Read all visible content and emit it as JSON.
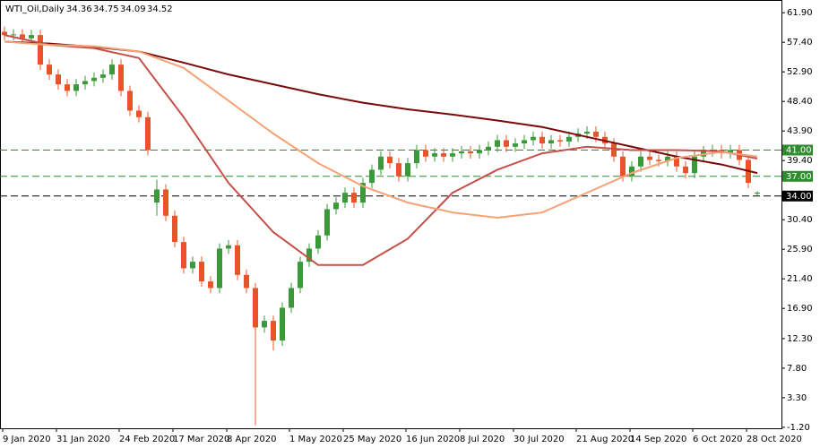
{
  "chart_data": {
    "type": "candlestick",
    "title": "WTI_Oil,Daily",
    "categories": [
      "9 Jan 2020",
      null,
      null,
      null,
      null,
      null,
      "31 Jan 2020",
      null,
      null,
      null,
      null,
      null,
      null,
      "24 Feb 2020",
      null,
      null,
      null,
      null,
      null,
      "17 Mar 2020",
      null,
      null,
      null,
      null,
      null,
      "8 Apr 2020",
      null,
      null,
      null,
      null,
      null,
      null,
      "1 May 2020",
      null,
      null,
      null,
      null,
      null,
      "25 May 2020",
      null,
      null,
      null,
      null,
      null,
      null,
      "16 Jun 2020",
      null,
      null,
      null,
      null,
      null,
      "8 Jul 2020",
      null,
      null,
      null,
      null,
      null,
      "30 Jul 2020",
      null,
      null,
      null,
      null,
      null,
      null,
      "21 Aug 2020",
      null,
      null,
      null,
      null,
      null,
      "14 Sep 2020",
      null,
      null,
      null,
      null,
      null,
      null,
      "6 Oct 2020",
      null,
      null,
      null,
      null,
      null,
      "28 Oct 2020",
      null
    ],
    "open": [
      59.0,
      58.5,
      58.6,
      58.0,
      58.5,
      54.0,
      52.5,
      51.0,
      50.0,
      51.0,
      51.5,
      52.0,
      52.5,
      54.0,
      50.0,
      47.0,
      46.0,
      33.0,
      35.0,
      31.0,
      27.0,
      23.0,
      24.0,
      21.0,
      20.0,
      26.0,
      26.5,
      22.0,
      20.0,
      14.0,
      15.0,
      12.0,
      17.0,
      20.0,
      24.0,
      26.0,
      28.0,
      32.0,
      33.0,
      34.5,
      33.0,
      36.0,
      38.0,
      40.0,
      39.0,
      37.0,
      39.0,
      41.0,
      40.0,
      40.5,
      40.0,
      40.5,
      40.8,
      40.5,
      41.0,
      41.5,
      42.5,
      41.5,
      42.0,
      42.5,
      43.0,
      42.0,
      42.5,
      42.3,
      43.0,
      43.5,
      43.8,
      43.0,
      42.0,
      40.0,
      37.0,
      38.5,
      40.0,
      39.5,
      39.3,
      40.0,
      38.5,
      37.5,
      40.0,
      40.8,
      41.0,
      40.5,
      41.0,
      39.5,
      34.36
    ],
    "high": [
      59.8,
      59.4,
      59.4,
      59.3,
      59.3,
      54.8,
      53.3,
      51.8,
      51.8,
      52.3,
      52.8,
      53.3,
      54.8,
      54.8,
      50.8,
      47.8,
      46.8,
      36.5,
      35.8,
      31.8,
      27.8,
      24.8,
      24.8,
      21.8,
      26.8,
      27.3,
      27.3,
      22.8,
      20.8,
      15.8,
      15.8,
      17.8,
      20.8,
      24.8,
      26.8,
      28.8,
      32.8,
      33.8,
      35.3,
      35.3,
      36.8,
      38.8,
      40.8,
      40.8,
      39.8,
      39.8,
      41.8,
      41.8,
      41.3,
      41.3,
      41.3,
      41.6,
      41.6,
      41.8,
      42.3,
      43.3,
      43.3,
      42.8,
      43.3,
      43.8,
      43.8,
      43.3,
      43.3,
      43.8,
      44.3,
      44.6,
      44.6,
      43.8,
      42.8,
      40.8,
      39.3,
      40.8,
      40.8,
      40.3,
      40.8,
      40.8,
      39.3,
      40.8,
      41.6,
      41.8,
      41.8,
      41.8,
      41.8,
      40.3,
      34.75
    ],
    "low": [
      57.7,
      57.7,
      57.2,
      57.2,
      53.2,
      51.7,
      50.2,
      49.2,
      49.2,
      50.2,
      50.7,
      51.2,
      51.7,
      49.2,
      46.2,
      45.2,
      40.2,
      31.0,
      30.2,
      26.2,
      22.2,
      22.2,
      20.2,
      19.2,
      19.2,
      25.2,
      21.2,
      19.2,
      -0.9,
      13.2,
      10.5,
      11.2,
      16.2,
      19.2,
      23.2,
      25.2,
      27.2,
      31.2,
      32.2,
      32.2,
      32.2,
      35.2,
      37.2,
      38.2,
      36.2,
      36.2,
      38.2,
      39.2,
      39.2,
      39.2,
      39.2,
      39.7,
      39.7,
      39.7,
      40.2,
      40.7,
      40.7,
      40.7,
      41.2,
      41.7,
      41.2,
      41.2,
      41.5,
      41.5,
      42.2,
      42.7,
      42.2,
      41.2,
      39.2,
      36.2,
      36.2,
      37.7,
      38.7,
      38.5,
      38.5,
      37.7,
      36.7,
      36.7,
      39.2,
      40.0,
      39.7,
      39.7,
      38.7,
      35.2,
      34.09
    ],
    "close": [
      58.5,
      58.6,
      58.0,
      58.5,
      54.0,
      52.5,
      51.0,
      50.0,
      51.0,
      51.5,
      52.0,
      52.5,
      54.0,
      50.0,
      47.0,
      46.0,
      41.0,
      35.0,
      31.0,
      27.0,
      23.0,
      24.0,
      21.0,
      20.0,
      26.0,
      26.5,
      22.0,
      20.0,
      14.0,
      15.0,
      12.0,
      17.0,
      20.0,
      24.0,
      26.0,
      28.0,
      32.0,
      33.0,
      34.5,
      33.0,
      36.0,
      38.0,
      40.0,
      39.0,
      37.0,
      39.0,
      41.0,
      40.0,
      40.5,
      40.0,
      40.5,
      40.8,
      40.5,
      41.0,
      41.5,
      42.5,
      41.5,
      42.0,
      42.5,
      43.0,
      42.0,
      42.5,
      42.3,
      43.0,
      43.5,
      43.8,
      43.0,
      42.0,
      40.0,
      37.0,
      38.5,
      40.0,
      39.5,
      39.3,
      40.0,
      38.5,
      37.5,
      40.0,
      40.8,
      41.0,
      40.5,
      41.0,
      39.5,
      36.0,
      34.52
    ],
    "up_color": "#3a9a3a",
    "down_color": "#e8542a",
    "overlays": [
      {
        "color": "#7a0a0a",
        "x": [
          0,
          5,
          10,
          15,
          20,
          25,
          30,
          35,
          40,
          45,
          50,
          55,
          60,
          65,
          70,
          75,
          80,
          84
        ],
        "values": [
          57.5,
          57.2,
          56.7,
          56.0,
          54.3,
          52.5,
          51.0,
          49.5,
          48.2,
          47.2,
          46.4,
          45.5,
          44.5,
          43.0,
          41.5,
          40.0,
          38.8,
          37.5
        ]
      },
      {
        "color": "#c4504a",
        "x": [
          0,
          5,
          10,
          15,
          20,
          25,
          30,
          35,
          40,
          45,
          50,
          55,
          60,
          65,
          70,
          75,
          80,
          84
        ],
        "values": [
          58.5,
          57.0,
          56.5,
          55.0,
          46.0,
          36.0,
          28.5,
          23.5,
          23.5,
          27.5,
          34.5,
          38.0,
          40.5,
          41.5,
          41.0,
          41.0,
          40.8,
          39.7
        ]
      },
      {
        "color": "#f4a276",
        "x": [
          0,
          5,
          10,
          15,
          20,
          25,
          30,
          35,
          40,
          45,
          50,
          55,
          60,
          65,
          70,
          75,
          80,
          84
        ],
        "values": [
          57.5,
          57.0,
          56.8,
          56.0,
          53.5,
          48.5,
          43.5,
          39.0,
          35.5,
          33.0,
          31.5,
          30.7,
          31.5,
          34.5,
          37.5,
          39.8,
          40.7,
          40.0
        ]
      }
    ],
    "levels": [
      {
        "value": 41,
        "label": "41.00",
        "color": "#2e8b2e"
      },
      {
        "value": 37,
        "label": "37.00",
        "color": "#2e8b2e"
      },
      {
        "value": 34,
        "label": "34.00",
        "color": "#000000"
      }
    ],
    "ylim": [
      -1.35,
      63.7
    ],
    "yticks": [
      {
        "value": 61.9,
        "label": "61.90"
      },
      {
        "value": 57.4,
        "label": "57.40"
      },
      {
        "value": 52.9,
        "label": "52.90"
      },
      {
        "value": 48.4,
        "label": "48.40"
      },
      {
        "value": 43.9,
        "label": "43.90"
      },
      {
        "value": 39.4,
        "label": "39.40"
      },
      {
        "value": 30.4,
        "label": "30.40"
      },
      {
        "value": 25.9,
        "label": "25.90"
      },
      {
        "value": 21.4,
        "label": "21.40"
      },
      {
        "value": 16.9,
        "label": "16.90"
      },
      {
        "value": 12.3,
        "label": "12.30"
      },
      {
        "value": 7.8,
        "label": "7.80"
      },
      {
        "value": 3.3,
        "label": "3.30"
      },
      {
        "value": -1.2,
        "label": "-1.20"
      }
    ]
  }
}
